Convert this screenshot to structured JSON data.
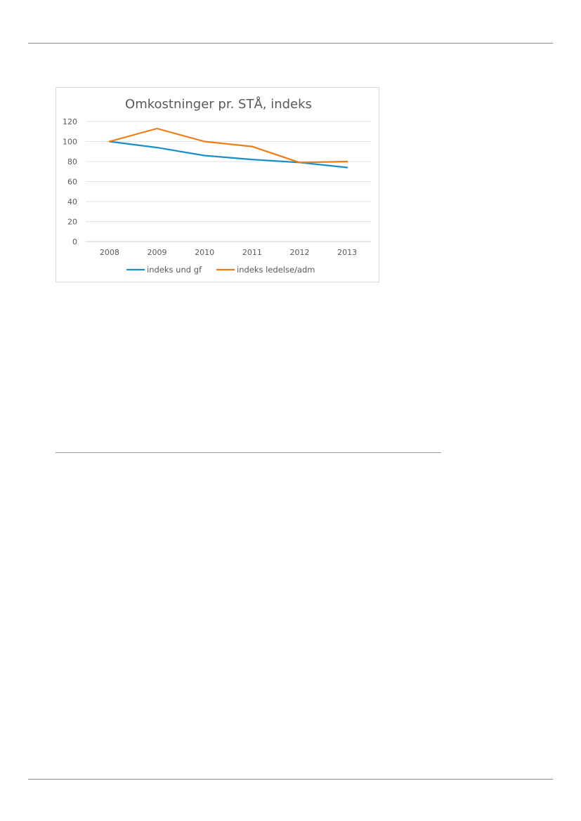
{
  "chart_data": {
    "type": "line",
    "title": "Omkostninger pr. STÅ, indeks",
    "categories": [
      "2008",
      "2009",
      "2010",
      "2011",
      "2012",
      "2013"
    ],
    "series": [
      {
        "name": "indeks und gf",
        "values": [
          100,
          94,
          86,
          82,
          79,
          74
        ],
        "color": "#1a8fc4"
      },
      {
        "name": "indeks ledelse/adm",
        "values": [
          100,
          113,
          100,
          95,
          79,
          80
        ],
        "color": "#ee7d16"
      }
    ],
    "yticks": [
      "0",
      "20",
      "40",
      "60",
      "80",
      "100",
      "120"
    ],
    "ylim": [
      0,
      120
    ],
    "grid": true,
    "legend_position": "bottom"
  }
}
